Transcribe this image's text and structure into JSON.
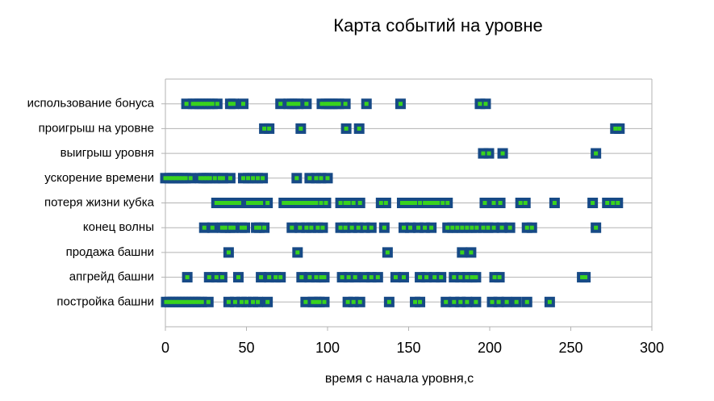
{
  "chart_data": {
    "type": "scatter",
    "title": "Карта событий на уровне",
    "x_label": "время с начала уровня,с",
    "categories": [
      "использование бонуса",
      "проигрыш на уровне",
      "выигрыш уровня",
      "ускорение времени",
      "потеря жизни кубка",
      "конец волны",
      "продажа башни",
      "апгрейд башни",
      "постройка башни"
    ],
    "x": [
      [
        13,
        17,
        19,
        21,
        23,
        25,
        27,
        29,
        32,
        40,
        42,
        48,
        71,
        76,
        78,
        80,
        82,
        87,
        96.5,
        99,
        101,
        103,
        105,
        107,
        111,
        124,
        145,
        194,
        197.5
      ],
      [
        61,
        64,
        83.5,
        111.5,
        119.5,
        277.5,
        280
      ],
      [
        196,
        199.5,
        208,
        265.5
      ],
      [
        0,
        2.5,
        4.5,
        6.5,
        8.5,
        10.5,
        12.5,
        15.5,
        21.5,
        23.5,
        25.5,
        27.5,
        30.5,
        33.5,
        35.5,
        40,
        48,
        51,
        54,
        57,
        60,
        81,
        89,
        93,
        96,
        100
      ],
      [
        31.5,
        33.5,
        35.5,
        37.5,
        39.5,
        41.5,
        43.5,
        45.5,
        51,
        53,
        55,
        57,
        59,
        63,
        73,
        75,
        77,
        79,
        81,
        83,
        85,
        87,
        89,
        91,
        93,
        96,
        99,
        108,
        111,
        113,
        116,
        120,
        133,
        136,
        146,
        148,
        150,
        152,
        154,
        157,
        160,
        162,
        164,
        166,
        168,
        171,
        174,
        197,
        202.5,
        206.5,
        219,
        222,
        240,
        263.5,
        272.5,
        276,
        279
      ],
      [
        24,
        29,
        35,
        37,
        40,
        42,
        47,
        49,
        56,
        58,
        61,
        78,
        83,
        87,
        90,
        94,
        97,
        108,
        111,
        115,
        119,
        123,
        127,
        135,
        147,
        151,
        156,
        160,
        164,
        174,
        177,
        180,
        183,
        186,
        189,
        192,
        196,
        199,
        202.5,
        207.5,
        212.5,
        223,
        226,
        265.5
      ],
      [
        39,
        81.5,
        137,
        183,
        188.5
      ],
      [
        13.5,
        27,
        31.5,
        35,
        45,
        59,
        64,
        68,
        71,
        84,
        89,
        93,
        96,
        98,
        109,
        113,
        117,
        123,
        127,
        131,
        142,
        147,
        157,
        161,
        166,
        170,
        178,
        182,
        186,
        189,
        191.5,
        203,
        206,
        257,
        259
      ],
      [
        0.5,
        2.5,
        4.5,
        6.5,
        8.5,
        10.5,
        12.5,
        14.5,
        16.5,
        18.5,
        20.5,
        22.5,
        26.5,
        39,
        43,
        47,
        50,
        54,
        57,
        63,
        86.5,
        91,
        93,
        95,
        98,
        112.5,
        116,
        120,
        138,
        154,
        157,
        173,
        178,
        182,
        186,
        191.5,
        201.5,
        205.5,
        210.5,
        216.5,
        223,
        237
      ]
    ],
    "xlim": [
      0,
      300
    ],
    "xticks": [
      0,
      50,
      100,
      150,
      200,
      250,
      300
    ],
    "marker_color": "#174a86",
    "marker_inner_color": "#39d21e",
    "grid": true
  }
}
